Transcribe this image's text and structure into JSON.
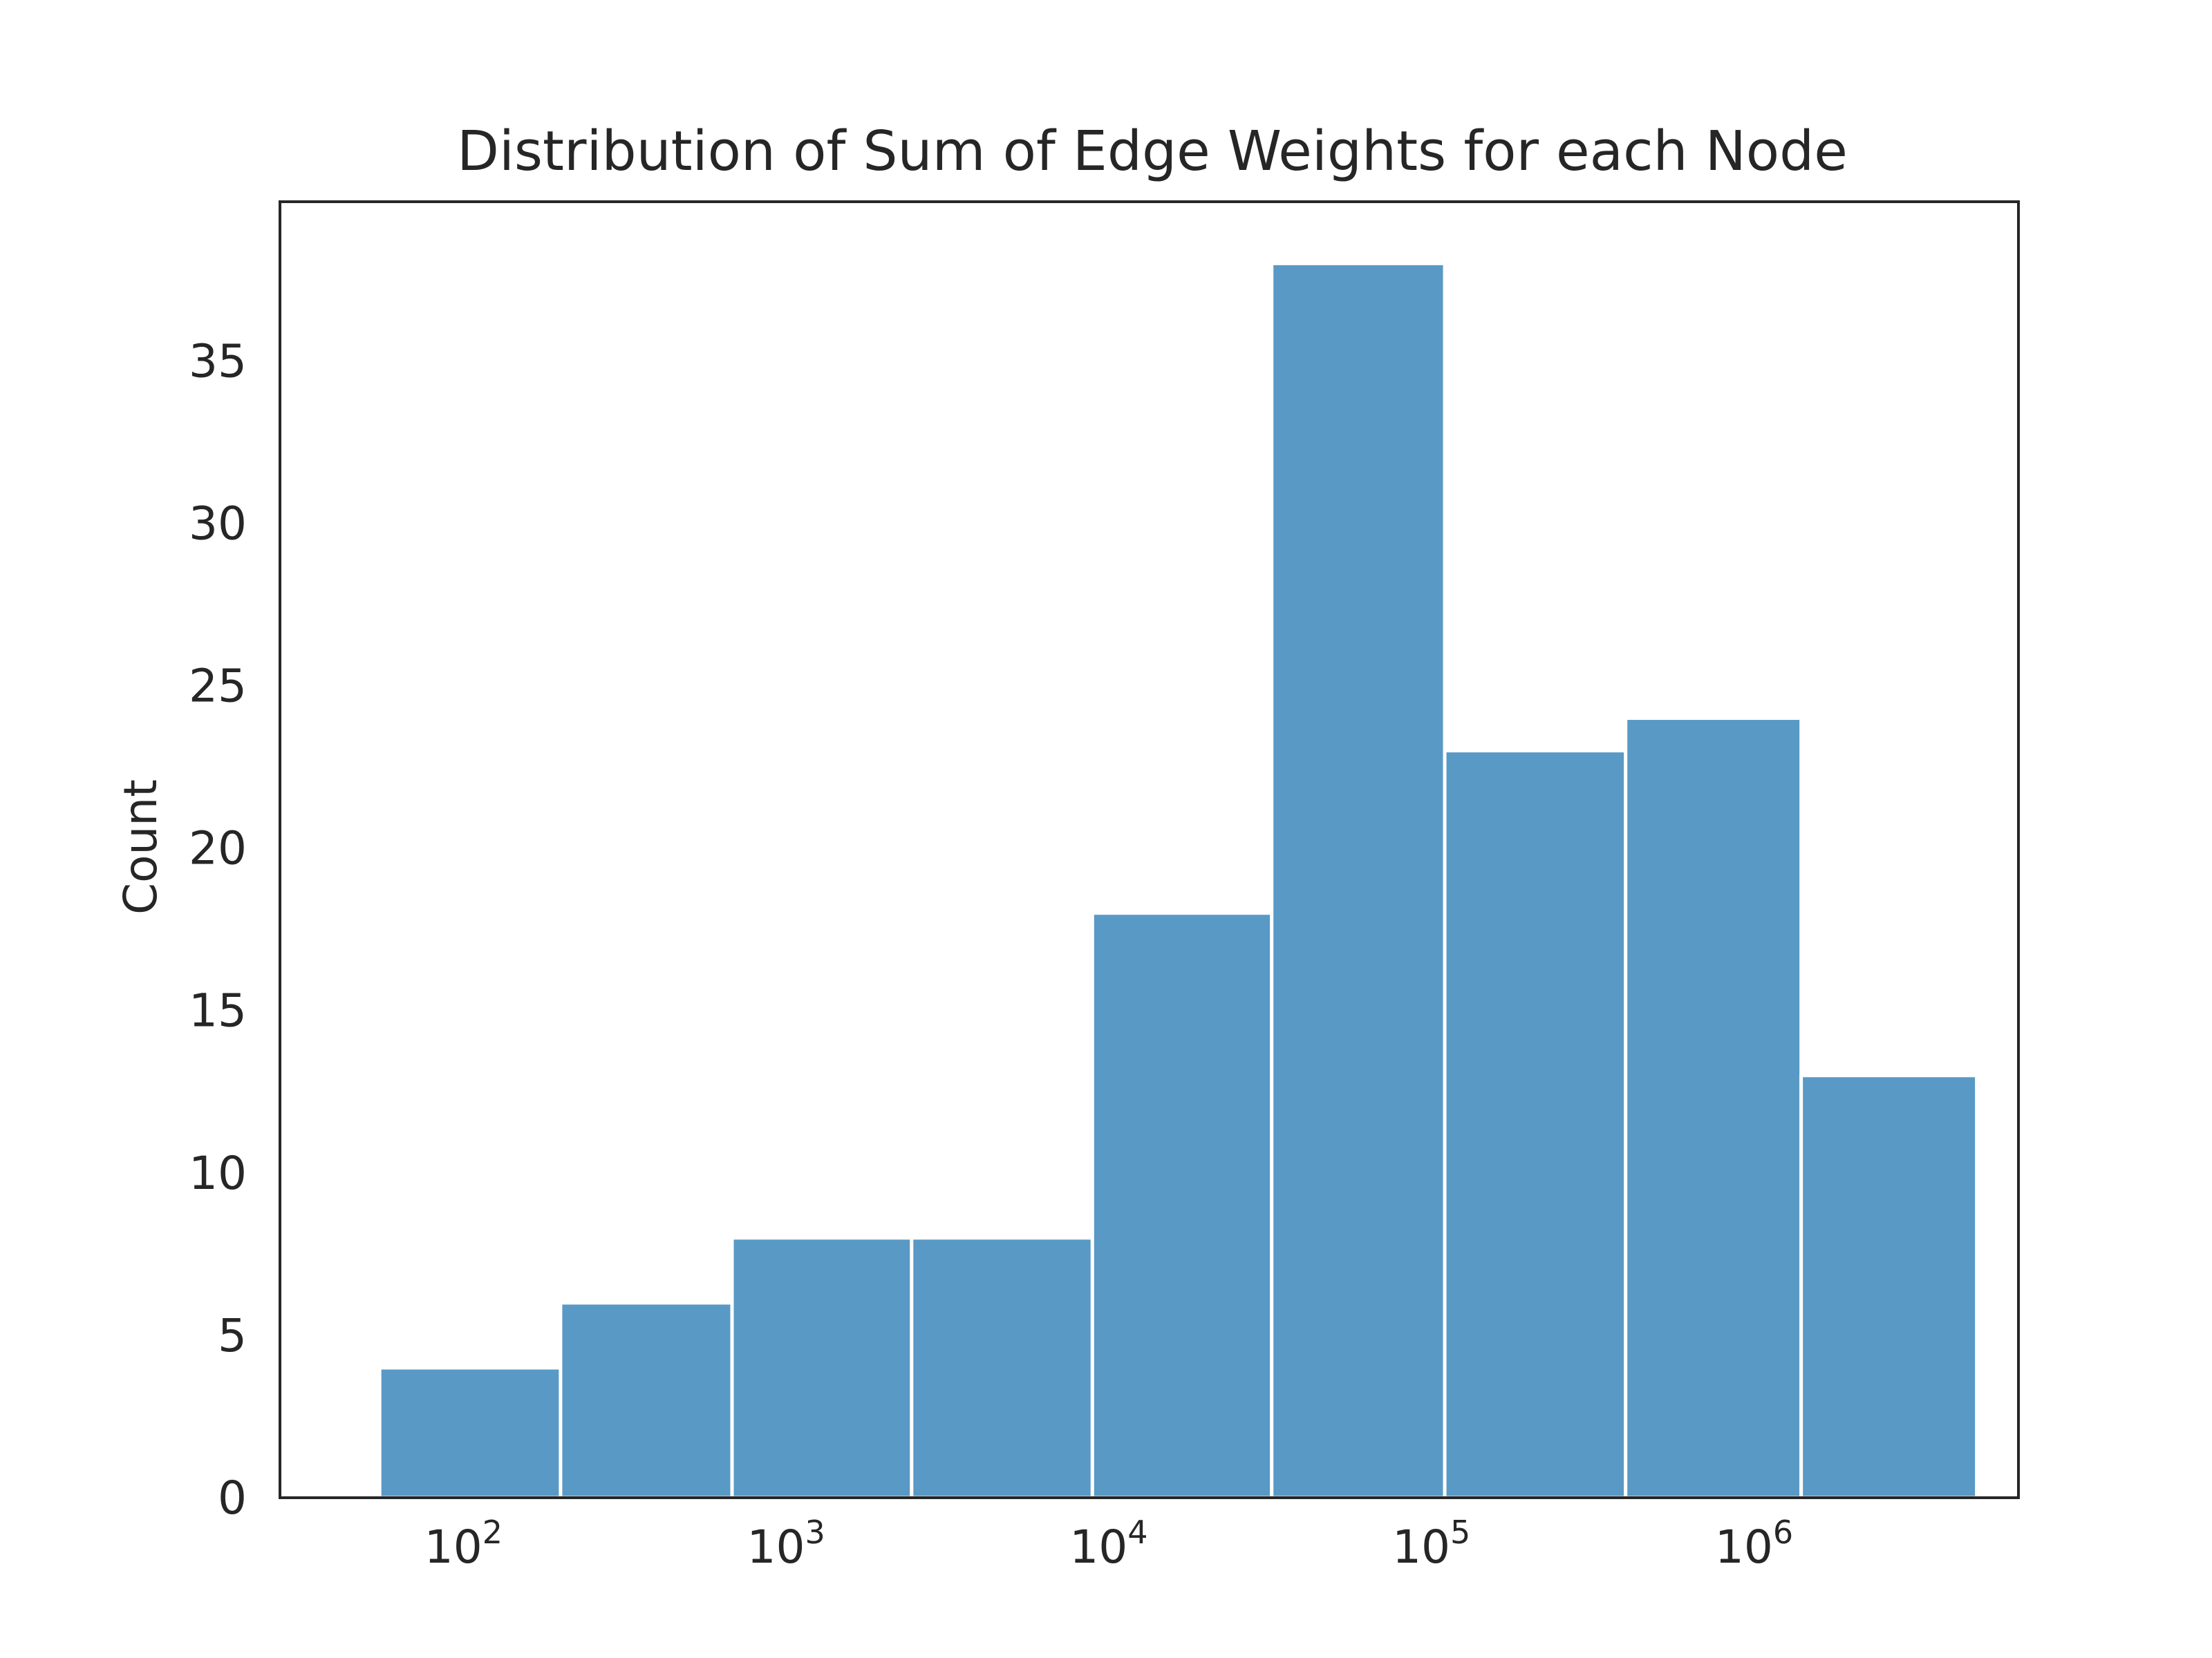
{
  "chart_data": {
    "type": "bar",
    "title": "Distribution of Sum of Edge Weights for each Node",
    "xlabel": "",
    "ylabel": "Count",
    "x_scale": "log",
    "xlim": [
      27,
      6600000
    ],
    "ylim": [
      0,
      39.9
    ],
    "bins": [
      {
        "x0": 55,
        "x1": 200,
        "count": 4
      },
      {
        "x0": 200,
        "x1": 680,
        "count": 6
      },
      {
        "x0": 680,
        "x1": 2450,
        "count": 8
      },
      {
        "x0": 2450,
        "x1": 8900,
        "count": 8
      },
      {
        "x0": 8900,
        "x1": 32000,
        "count": 18
      },
      {
        "x0": 32000,
        "x1": 110000,
        "count": 38
      },
      {
        "x0": 110000,
        "x1": 400000,
        "count": 23
      },
      {
        "x0": 400000,
        "x1": 1400000,
        "count": 24
      },
      {
        "x0": 1400000,
        "x1": 4900000,
        "count": 13
      }
    ],
    "x_ticks": [
      {
        "value": 100,
        "base": "10",
        "exp": "2"
      },
      {
        "value": 1000,
        "base": "10",
        "exp": "3"
      },
      {
        "value": 10000,
        "base": "10",
        "exp": "4"
      },
      {
        "value": 100000,
        "base": "10",
        "exp": "5"
      },
      {
        "value": 1000000,
        "base": "10",
        "exp": "6"
      }
    ],
    "y_ticks": [
      0,
      5,
      10,
      15,
      20,
      25,
      30,
      35
    ],
    "bar_color": "#5899c6",
    "bar_edge_color": "#ffffff",
    "grid": false,
    "legend": "none"
  }
}
